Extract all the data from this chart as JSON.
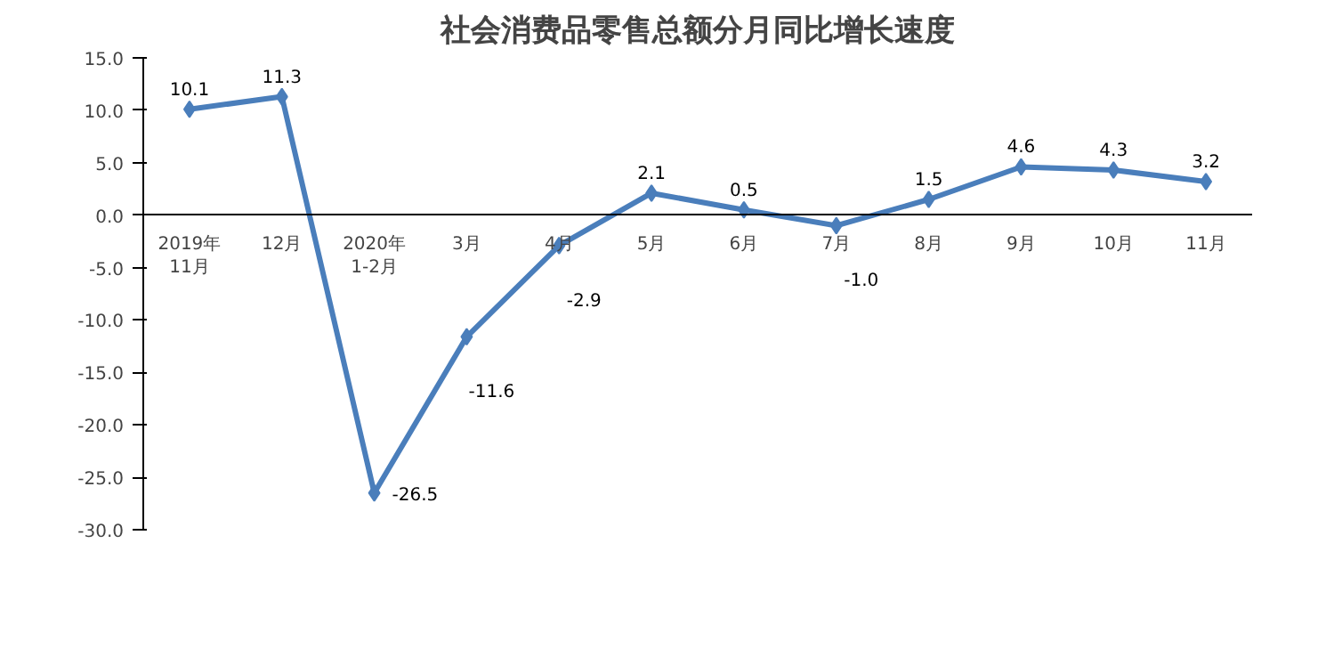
{
  "chart_data": {
    "type": "line",
    "title": "社会消费品零售总额分月同比增长速度",
    "categories": [
      "2019年\n11月",
      "12月",
      "2020年\n1-2月",
      "3月",
      "4月",
      "5月",
      "6月",
      "7月",
      "8月",
      "9月",
      "10月",
      "11月"
    ],
    "series": [
      {
        "color": "#4a7ebb",
        "values": [
          10.1,
          11.3,
          -26.5,
          -11.6,
          -2.9,
          2.1,
          0.5,
          -1.0,
          1.5,
          4.6,
          4.3,
          3.2
        ]
      }
    ],
    "ylim": [
      -30,
      15
    ],
    "yticks": [
      {
        "value": 15,
        "label": "15.0"
      },
      {
        "value": 10,
        "label": "10.0"
      },
      {
        "value": 5,
        "label": "5.0"
      },
      {
        "value": 0,
        "label": "0.0"
      },
      {
        "value": -5,
        "label": "-5.0"
      },
      {
        "value": -10,
        "label": "-10.0"
      },
      {
        "value": -15,
        "label": "-15.0"
      },
      {
        "value": -20,
        "label": "-20.0"
      },
      {
        "value": -25,
        "label": "-25.0"
      },
      {
        "value": -30,
        "label": "-30.0"
      }
    ],
    "value_labels": [
      "10.1",
      "11.3",
      "-26.5",
      "-11.6",
      "-2.9",
      "2.1",
      "0.5",
      "-1.0",
      "1.5",
      "4.6",
      "4.3",
      "3.2"
    ],
    "marker": "diamond",
    "line_style": "solid"
  }
}
